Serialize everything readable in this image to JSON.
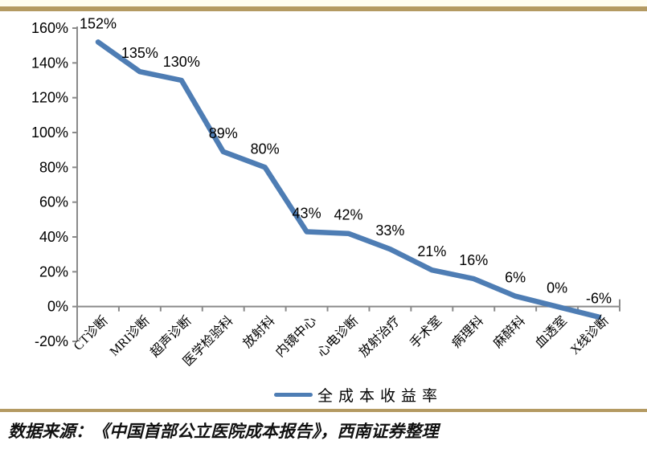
{
  "chart_data": {
    "type": "line",
    "title": "",
    "xlabel": "",
    "ylabel": "",
    "categories": [
      "CT诊断",
      "MRI诊断",
      "超声诊断",
      "医学检验科",
      "放射科",
      "内镜中心",
      "心电诊断",
      "放射治疗",
      "手术室",
      "病理科",
      "麻醉科",
      "血透室",
      "X线诊断"
    ],
    "series": [
      {
        "name": "全成本收益率",
        "values": [
          152,
          135,
          130,
          89,
          80,
          43,
          42,
          33,
          21,
          16,
          6,
          0,
          -6
        ]
      }
    ],
    "data_labels": [
      "152%",
      "135%",
      "130%",
      "89%",
      "80%",
      "43%",
      "42%",
      "33%",
      "21%",
      "16%",
      "6%",
      "0%",
      "-6%"
    ],
    "ylim": [
      -20,
      160
    ],
    "ytick_step": 20,
    "ytick_labels": [
      "160%",
      "140%",
      "120%",
      "100%",
      "80%",
      "60%",
      "40%",
      "20%",
      "0%",
      "-20%"
    ],
    "grid": false,
    "legend_position": "bottom",
    "colors": {
      "line": "#4e7db4",
      "axis": "#8a8a8a",
      "text": "#000000"
    }
  },
  "legend": {
    "label": "全成本收益率"
  },
  "footer": {
    "source_text": "数据来源：《中国首部公立医院成本报告》，西南证券整理"
  },
  "ui_colors": {
    "divider_band": "#b49a62",
    "top_strip": "#fffdf0",
    "background": "#ffffff"
  }
}
